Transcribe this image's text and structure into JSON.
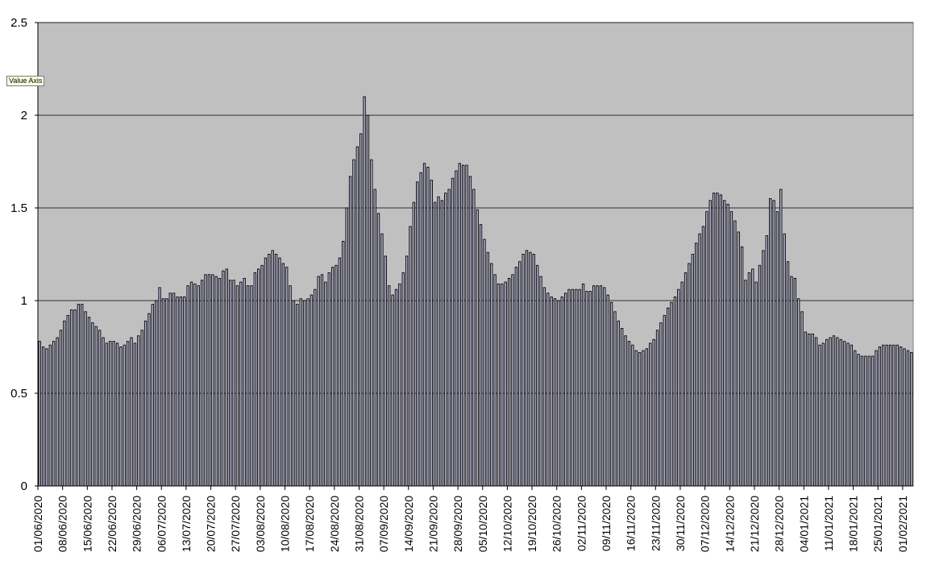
{
  "tooltip": "Value Axis",
  "chart_data": {
    "type": "bar",
    "title": "",
    "xlabel": "",
    "ylabel": "",
    "ylim": [
      0,
      2.5
    ],
    "y_ticks": [
      "0",
      "0.5",
      "1",
      "1.5",
      "2",
      "2.5"
    ],
    "grid": true,
    "legend": "none",
    "colors": {
      "plot_background": "#c0c0c0",
      "bar_fill": "#b8b8d8",
      "bar_edge": "#000000",
      "gridline": "#000000"
    },
    "x_start": "01/06/2020",
    "x_tick_labels": [
      "01/06/2020",
      "08/06/2020",
      "15/06/2020",
      "22/06/2020",
      "29/06/2020",
      "06/07/2020",
      "13/07/2020",
      "20/07/2020",
      "27/07/2020",
      "03/08/2020",
      "10/08/2020",
      "17/08/2020",
      "24/08/2020",
      "31/08/2020",
      "07/09/2020",
      "14/09/2020",
      "21/09/2020",
      "28/09/2020",
      "05/10/2020",
      "12/10/2020",
      "19/10/2020",
      "26/10/2020",
      "02/11/2020",
      "09/11/2020",
      "16/11/2020",
      "23/11/2020",
      "30/11/2020",
      "07/12/2020",
      "14/12/2020",
      "21/12/2020",
      "28/12/2020",
      "04/01/2021",
      "11/01/2021",
      "18/01/2021",
      "25/01/2021",
      "01/02/2021"
    ],
    "values": [
      0.78,
      0.75,
      0.74,
      0.76,
      0.78,
      0.8,
      0.84,
      0.89,
      0.92,
      0.95,
      0.95,
      0.98,
      0.98,
      0.94,
      0.91,
      0.88,
      0.86,
      0.84,
      0.8,
      0.77,
      0.78,
      0.78,
      0.77,
      0.75,
      0.76,
      0.78,
      0.8,
      0.77,
      0.81,
      0.84,
      0.89,
      0.93,
      0.98,
      1.0,
      1.07,
      1.01,
      1.01,
      1.04,
      1.04,
      1.02,
      1.02,
      1.02,
      1.08,
      1.1,
      1.09,
      1.08,
      1.11,
      1.14,
      1.14,
      1.14,
      1.13,
      1.12,
      1.16,
      1.17,
      1.11,
      1.11,
      1.08,
      1.1,
      1.12,
      1.08,
      1.08,
      1.15,
      1.17,
      1.19,
      1.23,
      1.25,
      1.27,
      1.25,
      1.23,
      1.2,
      1.18,
      1.08,
      1.0,
      0.98,
      1.01,
      1.0,
      1.01,
      1.03,
      1.06,
      1.13,
      1.14,
      1.1,
      1.15,
      1.18,
      1.19,
      1.23,
      1.32,
      1.5,
      1.67,
      1.76,
      1.83,
      1.9,
      2.1,
      2.0,
      1.76,
      1.6,
      1.47,
      1.36,
      1.24,
      1.08,
      1.03,
      1.06,
      1.09,
      1.15,
      1.24,
      1.4,
      1.53,
      1.64,
      1.69,
      1.74,
      1.72,
      1.65,
      1.53,
      1.56,
      1.54,
      1.58,
      1.6,
      1.66,
      1.7,
      1.74,
      1.73,
      1.73,
      1.67,
      1.6,
      1.49,
      1.41,
      1.33,
      1.26,
      1.2,
      1.14,
      1.09,
      1.09,
      1.1,
      1.12,
      1.14,
      1.18,
      1.21,
      1.25,
      1.27,
      1.26,
      1.25,
      1.19,
      1.13,
      1.07,
      1.04,
      1.02,
      1.01,
      1.0,
      1.02,
      1.04,
      1.06,
      1.06,
      1.06,
      1.06,
      1.09,
      1.05,
      1.05,
      1.08,
      1.08,
      1.08,
      1.07,
      1.03,
      0.99,
      0.94,
      0.89,
      0.85,
      0.81,
      0.78,
      0.76,
      0.73,
      0.72,
      0.73,
      0.74,
      0.77,
      0.79,
      0.84,
      0.88,
      0.92,
      0.96,
      0.99,
      1.02,
      1.06,
      1.1,
      1.15,
      1.2,
      1.25,
      1.31,
      1.36,
      1.4,
      1.48,
      1.54,
      1.58,
      1.58,
      1.57,
      1.54,
      1.52,
      1.48,
      1.43,
      1.37,
      1.29,
      1.11,
      1.15,
      1.17,
      1.1,
      1.19,
      1.27,
      1.35,
      1.55,
      1.54,
      1.48,
      1.6,
      1.36,
      1.21,
      1.13,
      1.12,
      1.01,
      0.94,
      0.83,
      0.82,
      0.82,
      0.8,
      0.76,
      0.77,
      0.79,
      0.8,
      0.81,
      0.8,
      0.79,
      0.78,
      0.77,
      0.76,
      0.73,
      0.71,
      0.7,
      0.7,
      0.7,
      0.7,
      0.73,
      0.75,
      0.76,
      0.76,
      0.76,
      0.76,
      0.76,
      0.75,
      0.74,
      0.73,
      0.72
    ]
  }
}
